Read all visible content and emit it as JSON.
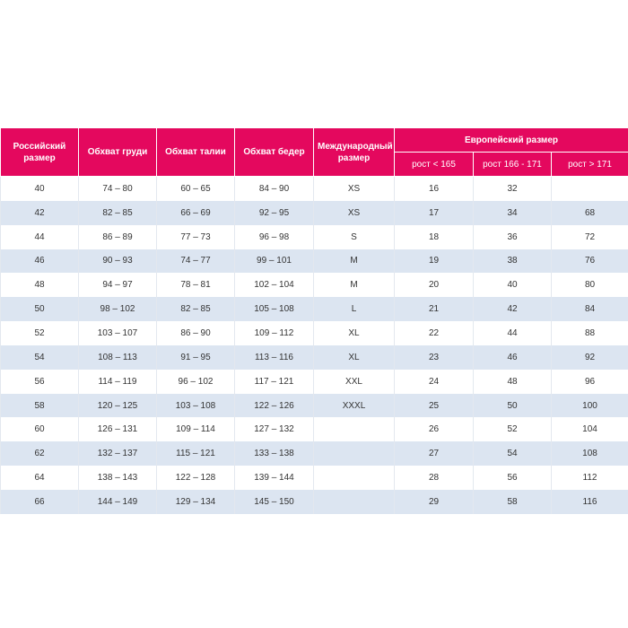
{
  "table": {
    "header": {
      "columns": [
        "Российский размер",
        "Обхват груди",
        "Обхват талии",
        "Обхват бедер",
        "Международный размер"
      ],
      "group": "Европейский размер",
      "subcolumns": [
        "рост < 165",
        "рост 166 - 171",
        "рост > 171"
      ]
    },
    "rows": [
      [
        40,
        "74 – 80",
        "60 – 65",
        "84 – 90",
        "XS",
        16,
        32,
        null
      ],
      [
        42,
        "82 – 85",
        "66 – 69",
        "92 – 95",
        "XS",
        17,
        34,
        68
      ],
      [
        44,
        "86 – 89",
        "77 – 73",
        "96 – 98",
        "S",
        18,
        36,
        72
      ],
      [
        46,
        "90 – 93",
        "74 – 77",
        "99 – 101",
        "M",
        19,
        38,
        76
      ],
      [
        48,
        "94 – 97",
        "78 – 81",
        "102 – 104",
        "M",
        20,
        40,
        80
      ],
      [
        50,
        "98 – 102",
        "82 – 85",
        "105 – 108",
        "L",
        21,
        42,
        84
      ],
      [
        52,
        "103 – 107",
        "86 – 90",
        "109 – 112",
        "XL",
        22,
        44,
        88
      ],
      [
        54,
        "108 – 113",
        "91 – 95",
        "113 – 116",
        "XL",
        23,
        46,
        92
      ],
      [
        56,
        "114 – 119",
        "96 – 102",
        "117 – 121",
        "XXL",
        24,
        48,
        96
      ],
      [
        58,
        "120 – 125",
        "103 – 108",
        "122 – 126",
        "XXXL",
        25,
        50,
        100
      ],
      [
        60,
        "126 – 131",
        "109 – 114",
        "127 – 132",
        null,
        26,
        52,
        104
      ],
      [
        62,
        "132 – 137",
        "115 – 121",
        "133 – 138",
        null,
        27,
        54,
        108
      ],
      [
        64,
        "138 – 143",
        "122 – 128",
        "139 – 144",
        null,
        28,
        56,
        112
      ],
      [
        66,
        "144 – 149",
        "129 – 134",
        "145 – 150",
        null,
        29,
        58,
        116
      ]
    ]
  }
}
